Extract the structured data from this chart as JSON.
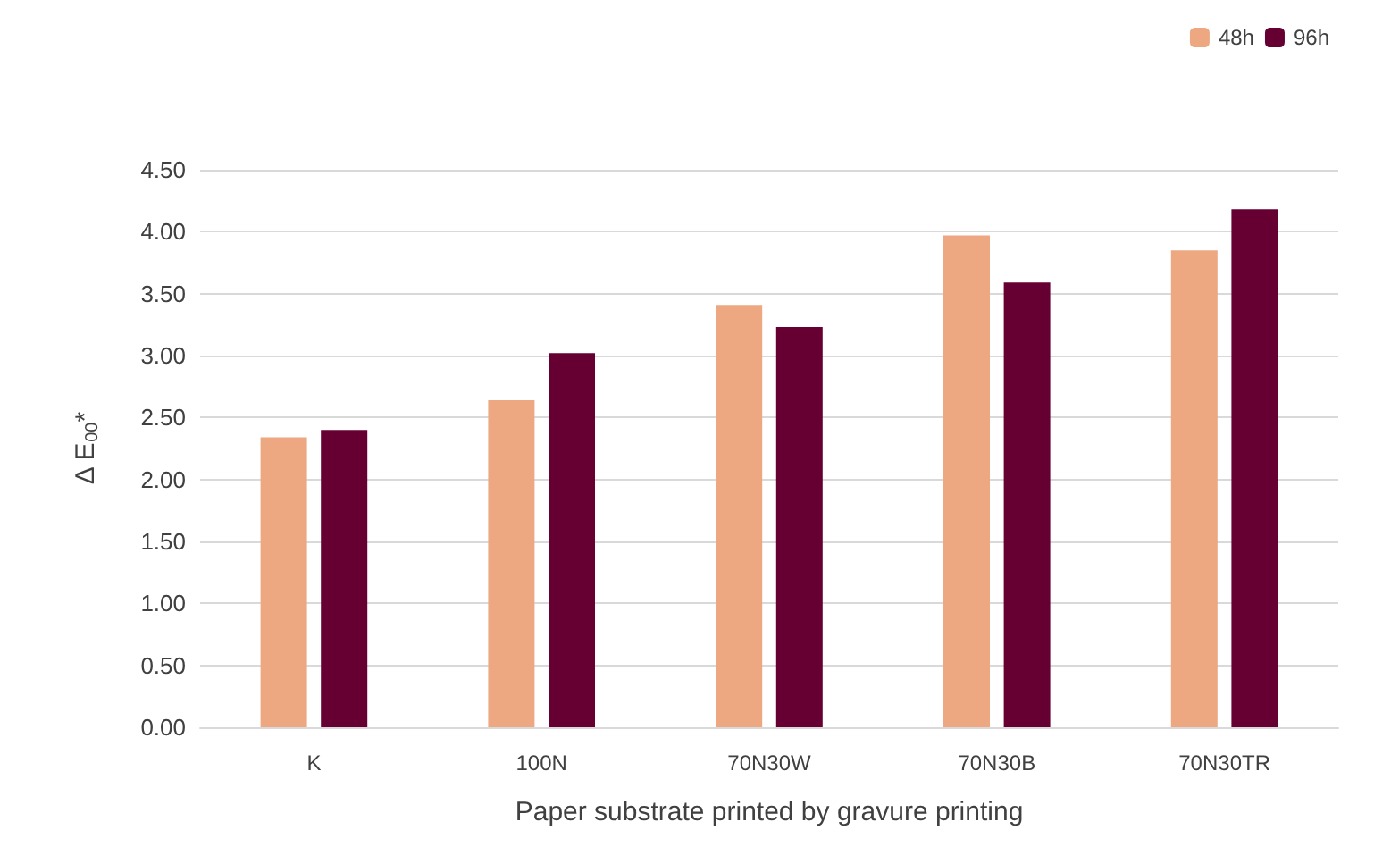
{
  "chart_data": {
    "type": "bar",
    "categories": [
      "K",
      "100N",
      "70N30W",
      "70N30B",
      "70N30TR"
    ],
    "series": [
      {
        "name": "48h",
        "color": "#eda882",
        "values": [
          2.34,
          2.64,
          3.41,
          3.97,
          3.85
        ]
      },
      {
        "name": "96h",
        "color": "#660033",
        "values": [
          2.4,
          3.02,
          3.23,
          3.59,
          4.18
        ]
      }
    ],
    "xlabel": "Paper substrate printed by gravure printing",
    "ylabel": "Δ E$_{00}$*",
    "ylim": [
      0,
      4.5
    ],
    "yticks": [
      {
        "value": 0,
        "label": "0.00"
      },
      {
        "value": 0.5,
        "label": "0.50"
      },
      {
        "value": 1,
        "label": "1.00"
      },
      {
        "value": 1.5,
        "label": "1.50"
      },
      {
        "value": 2,
        "label": "2.00"
      },
      {
        "value": 2.5,
        "label": "2.50"
      },
      {
        "value": 3,
        "label": "3.00"
      },
      {
        "value": 3.5,
        "label": "3.50"
      },
      {
        "value": 4,
        "label": "4.00"
      },
      {
        "value": 4.5,
        "label": "4.50"
      }
    ],
    "grid": "y",
    "legend": "top right"
  }
}
